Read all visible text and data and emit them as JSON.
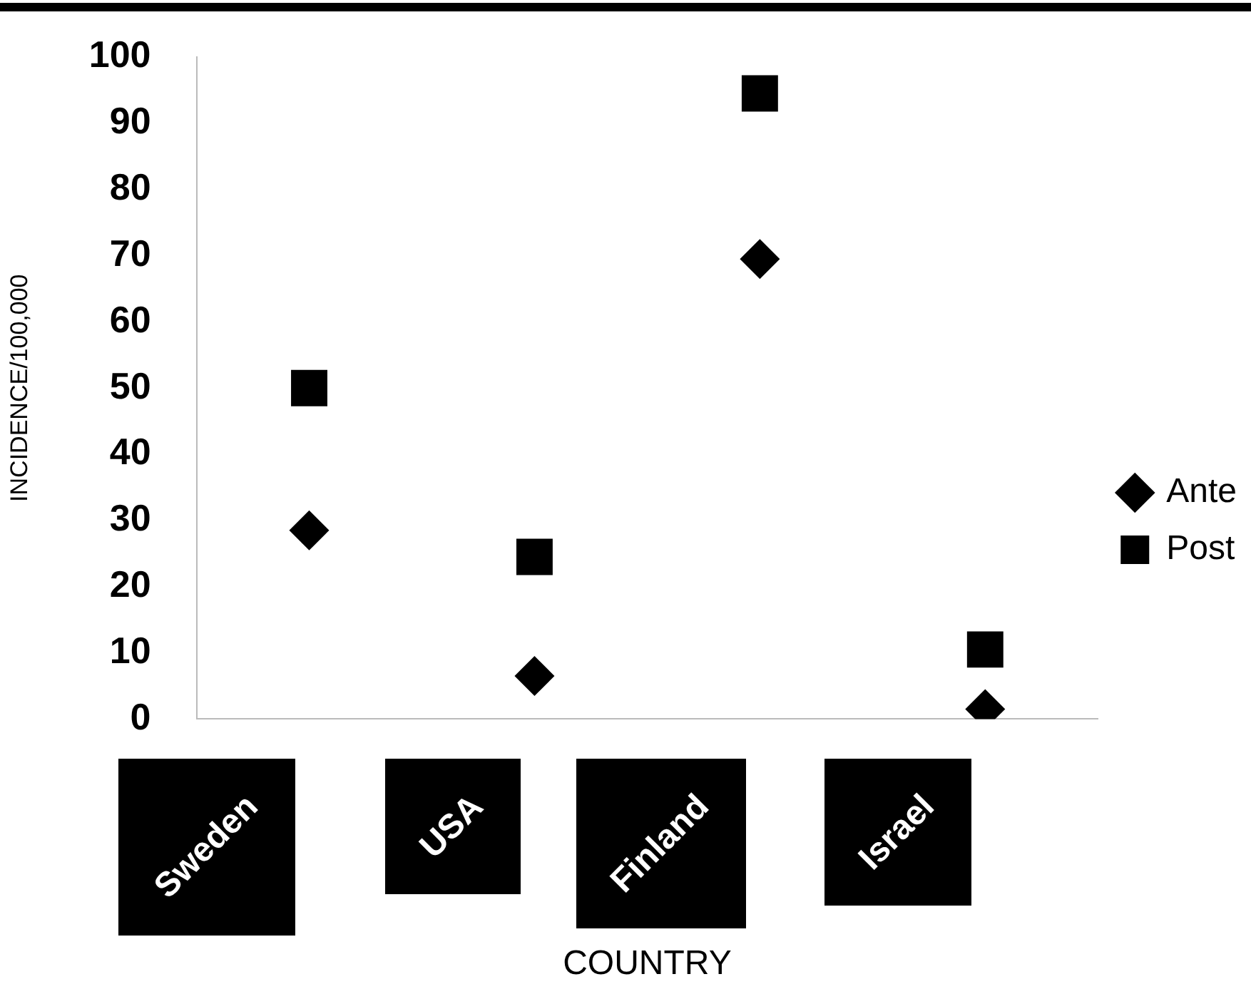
{
  "chart_data": {
    "type": "scatter",
    "xlabel": "COUNTRY",
    "ylabel": "INCIDENCE/100,000",
    "categories": [
      "Sweden",
      "USA",
      "Finland",
      "Israel"
    ],
    "series": [
      {
        "name": "Ante",
        "color": "#000000",
        "marker": "diamond",
        "values": [
          28.5,
          6.5,
          69.5,
          1.5
        ]
      },
      {
        "name": "Post",
        "color": "#000000",
        "marker": "square",
        "values": [
          50,
          24.5,
          94.5,
          10.5
        ]
      }
    ],
    "ylim": [
      0,
      100
    ],
    "yticks": [
      0,
      10,
      20,
      30,
      40,
      50,
      60,
      70,
      80,
      90,
      100
    ],
    "grid": false,
    "legend": "right"
  }
}
